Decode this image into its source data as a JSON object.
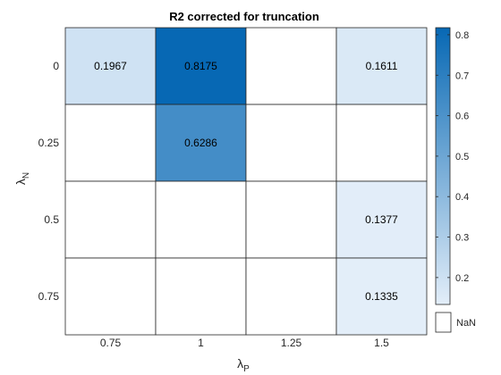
{
  "chart_data": {
    "type": "heatmap",
    "title": "R2 corrected for truncation",
    "xlabel": {
      "base": "λ",
      "sub": "P"
    },
    "ylabel": {
      "base": "λ",
      "sub": "N"
    },
    "x_categories": [
      "0.75",
      "1",
      "1.25",
      "1.5"
    ],
    "y_categories": [
      "0",
      "0.25",
      "0.5",
      "0.75"
    ],
    "values": [
      [
        0.1967,
        0.8175,
        null,
        0.1611
      ],
      [
        null,
        0.6286,
        null,
        null
      ],
      [
        null,
        null,
        null,
        0.1377
      ],
      [
        null,
        null,
        null,
        0.1335
      ]
    ],
    "value_labels": [
      [
        "0.1967",
        "0.8175",
        "",
        "0.1611"
      ],
      [
        "",
        "0.6286",
        "",
        ""
      ],
      [
        "",
        "",
        "",
        "0.1377"
      ],
      [
        "",
        "",
        "",
        "0.1335"
      ]
    ],
    "colorbar": {
      "range": [
        0.1335,
        0.8175
      ],
      "ticks": [
        "0.2",
        "0.3",
        "0.4",
        "0.5",
        "0.6",
        "0.7",
        "0.8"
      ],
      "low_color": "#e3eef9",
      "high_color": "#0768b4",
      "missing_label": "NaN",
      "missing_color": "#ffffff"
    }
  }
}
